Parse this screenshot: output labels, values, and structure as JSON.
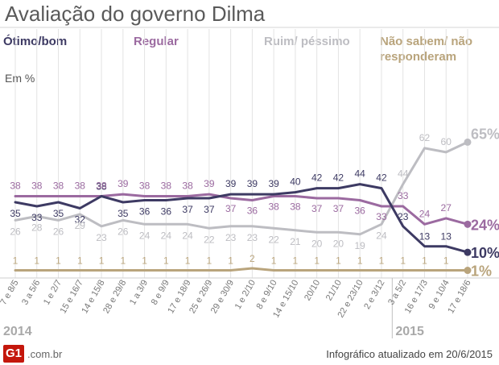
{
  "title": "Avaliação do governo Dilma",
  "unit_label": "Em %",
  "footer": {
    "logo": "G1",
    "domain": ".com.br",
    "updated": "Infográfico atualizado em 20/6/2015"
  },
  "colors": {
    "otimo": "#3d3a63",
    "regular": "#9b6aa0",
    "ruim": "#bdbdc2",
    "nao_sabem": "#b9a47c",
    "grid": "#e3e3e3",
    "axis_text": "#777777"
  },
  "chart_data": {
    "type": "line",
    "title": "Avaliação do governo Dilma",
    "ylabel": "Em %",
    "ylim": [
      0,
      70
    ],
    "grid": true,
    "categories": [
      "7 e 8/5",
      "3 a 5/6",
      "1 e 2/7",
      "15 e 16/7",
      "14 e 15/8",
      "28 e 29/8",
      "1 a 3/9",
      "8 e 9/9",
      "17 e 18/9",
      "25 e 26/9",
      "29 e 30/9",
      "1 e 2/10",
      "8 e 9/10",
      "14 e 15/10",
      "20/10",
      "21/10",
      "22 e 23/10",
      "2 e 3/12",
      "3 a 5/2",
      "16 e 17/3",
      "9 e 10/4",
      "17 e 18/6"
    ],
    "year_labels": [
      {
        "year": "2014",
        "start_index": 0
      },
      {
        "year": "2015",
        "start_index": 18
      }
    ],
    "series": [
      {
        "name": "Ótimo/bom",
        "key": "otimo",
        "legend": "Ótimo/bom",
        "values": [
          35,
          33,
          35,
          32,
          38,
          35,
          36,
          36,
          37,
          37,
          39,
          39,
          39,
          40,
          42,
          42,
          44,
          42,
          23,
          13,
          13,
          10
        ],
        "last_label": "10%"
      },
      {
        "name": "Regular",
        "key": "regular",
        "legend": "Regular",
        "values": [
          38,
          38,
          38,
          38,
          38,
          39,
          38,
          38,
          38,
          39,
          37,
          36,
          38,
          38,
          37,
          37,
          36,
          33,
          33,
          24,
          27,
          24
        ],
        "last_label": "24%"
      },
      {
        "name": "Ruim/péssimo",
        "key": "ruim",
        "legend": "Ruim/ péssimo",
        "values": [
          26,
          28,
          26,
          29,
          23,
          26,
          24,
          24,
          24,
          22,
          23,
          23,
          22,
          21,
          20,
          20,
          19,
          24,
          44,
          62,
          60,
          65
        ],
        "last_label": "65%"
      },
      {
        "name": "Não sabem/não responderam",
        "key": "nao_sabem",
        "legend": "Não sabem/ não responderam",
        "values": [
          1,
          1,
          1,
          1,
          1,
          1,
          1,
          1,
          1,
          1,
          1,
          2,
          1,
          1,
          1,
          1,
          1,
          1,
          1,
          1,
          1,
          1
        ],
        "last_label": "1%"
      }
    ]
  }
}
